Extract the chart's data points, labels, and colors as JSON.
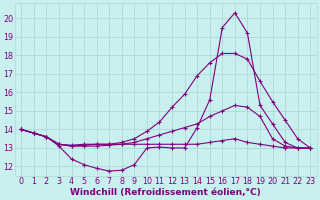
{
  "background_color": "#c8f0ee",
  "grid_color": "#b0d8d8",
  "line_color": "#800080",
  "xlabel": "Windchill (Refroidissement éolien,°C)",
  "xlabel_fontsize": 6.5,
  "tick_fontsize": 5.8,
  "xlim": [
    -0.5,
    23.5
  ],
  "ylim": [
    11.5,
    20.8
  ],
  "xticks": [
    0,
    1,
    2,
    3,
    4,
    5,
    6,
    7,
    8,
    9,
    10,
    11,
    12,
    13,
    14,
    15,
    16,
    17,
    18,
    19,
    20,
    21,
    22,
    23
  ],
  "yticks": [
    12,
    13,
    14,
    15,
    16,
    17,
    18,
    19,
    20
  ],
  "series": [
    [
      14.0,
      13.8,
      13.6,
      13.1,
      12.4,
      12.1,
      11.9,
      11.75,
      11.8,
      12.1,
      13.0,
      13.05,
      13.0,
      13.0,
      14.1,
      15.6,
      19.5,
      20.3,
      19.2,
      15.3,
      14.3,
      13.3,
      13.0,
      13.0
    ],
    [
      14.0,
      13.8,
      13.6,
      13.2,
      13.1,
      13.1,
      13.1,
      13.15,
      13.2,
      13.2,
      13.2,
      13.2,
      13.2,
      13.2,
      13.2,
      13.3,
      13.4,
      13.5,
      13.3,
      13.2,
      13.1,
      13.0,
      13.0,
      13.0
    ],
    [
      14.0,
      13.8,
      13.6,
      13.2,
      13.1,
      13.15,
      13.2,
      13.2,
      13.2,
      13.3,
      13.5,
      13.7,
      13.9,
      14.1,
      14.3,
      14.7,
      15.0,
      15.3,
      15.2,
      14.7,
      13.5,
      13.1,
      13.0,
      13.0
    ],
    [
      14.0,
      13.8,
      13.6,
      13.2,
      13.15,
      13.2,
      13.2,
      13.2,
      13.3,
      13.5,
      13.9,
      14.4,
      15.2,
      15.9,
      16.9,
      17.6,
      18.1,
      18.1,
      17.8,
      16.6,
      15.5,
      14.5,
      13.5,
      13.0
    ]
  ]
}
